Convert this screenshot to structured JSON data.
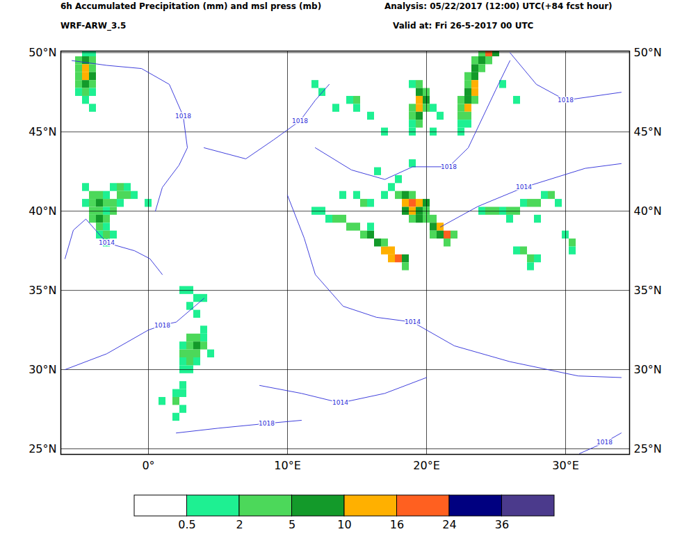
{
  "chart_data": {
    "type": "map",
    "title": "6h Accumulated Precipitation (mm) and msl press (mb)",
    "subtitle": "WRF-ARW_3.5",
    "analysis": "Analysis: 05/22/2017 (12:00) UTC(+84 fcst hour)",
    "valid": "Valid at: Fri 26-5-2017 00 UTC",
    "xlim": [
      -6.3,
      34.6
    ],
    "ylim": [
      24.65,
      50.1
    ],
    "xticks": [
      {
        "value": 0,
        "label": "0°"
      },
      {
        "value": 10,
        "label": "10°E"
      },
      {
        "value": 20,
        "label": "20°E"
      },
      {
        "value": 30,
        "label": "30°E"
      }
    ],
    "yticks": [
      {
        "value": 25,
        "label": "25°N"
      },
      {
        "value": 30,
        "label": "30°N"
      },
      {
        "value": 35,
        "label": "35°N"
      },
      {
        "value": 40,
        "label": "40°N"
      },
      {
        "value": 45,
        "label": "45°N"
      },
      {
        "value": 50,
        "label": "50°N"
      }
    ],
    "grid": true,
    "colorbar": {
      "ticks": [
        0.5,
        2,
        5,
        10,
        16,
        24,
        36
      ],
      "colors": [
        "#ffffff",
        "#1ef092",
        "#4cd85a",
        "#139a2a",
        "#ffb000",
        "#ff6020",
        "#000080",
        "#4b3a8c"
      ]
    },
    "precipitation": [
      [
        -4.5,
        50,
        1
      ],
      [
        -4,
        50,
        1
      ],
      [
        -5,
        49.5,
        3
      ],
      [
        -4.5,
        49.5,
        6
      ],
      [
        -4,
        49.5,
        3
      ],
      [
        -5,
        49,
        3
      ],
      [
        -4.5,
        49,
        12
      ],
      [
        -4,
        49,
        4
      ],
      [
        -5,
        48.5,
        3
      ],
      [
        -4.5,
        48.5,
        14
      ],
      [
        -4,
        48.5,
        6
      ],
      [
        -5,
        48,
        2
      ],
      [
        -4.5,
        48,
        7
      ],
      [
        -4,
        48,
        3
      ],
      [
        -5,
        47.5,
        1
      ],
      [
        -4.5,
        47.5,
        3
      ],
      [
        -4,
        47.5,
        1
      ],
      [
        -4.5,
        47,
        1
      ],
      [
        -4,
        46.5,
        1
      ],
      [
        -4.5,
        41.5,
        1
      ],
      [
        -2.5,
        41.5,
        1
      ],
      [
        -2,
        41.5,
        3
      ],
      [
        -1.5,
        41.5,
        1
      ],
      [
        -4,
        41,
        3
      ],
      [
        -3.5,
        41,
        3
      ],
      [
        -3,
        41,
        1
      ],
      [
        -2,
        41,
        3
      ],
      [
        -1.5,
        41,
        3
      ],
      [
        -1,
        41,
        1
      ],
      [
        -4.5,
        40.5,
        1
      ],
      [
        -4,
        40.5,
        3
      ],
      [
        -3.5,
        40.5,
        6
      ],
      [
        -3,
        40.5,
        3
      ],
      [
        -2.5,
        40.5,
        3
      ],
      [
        -2,
        40.5,
        1
      ],
      [
        0,
        40.5,
        1
      ],
      [
        -4,
        40,
        3
      ],
      [
        -3.5,
        40,
        3
      ],
      [
        -3,
        40,
        1
      ],
      [
        -2.5,
        40,
        3
      ],
      [
        -4,
        39.5,
        3
      ],
      [
        -3.5,
        39.5,
        6
      ],
      [
        -3,
        39.5,
        3
      ],
      [
        -3.5,
        39,
        3
      ],
      [
        -3,
        39,
        1
      ],
      [
        -3.5,
        38.5,
        1
      ],
      [
        -3,
        38.5,
        3
      ],
      [
        -2.5,
        38.5,
        1
      ],
      [
        -3,
        38,
        1
      ],
      [
        2.5,
        35,
        1
      ],
      [
        3,
        35,
        1
      ],
      [
        3.5,
        34.5,
        1
      ],
      [
        4,
        34.5,
        1
      ],
      [
        3,
        34,
        1
      ],
      [
        3.5,
        33.5,
        1
      ],
      [
        4,
        32.5,
        1
      ],
      [
        3,
        32,
        3
      ],
      [
        3.5,
        32,
        3
      ],
      [
        4,
        32,
        1
      ],
      [
        2.5,
        31.5,
        1
      ],
      [
        3,
        31.5,
        3
      ],
      [
        3.5,
        31.5,
        6
      ],
      [
        4,
        31.5,
        3
      ],
      [
        2.5,
        31,
        3
      ],
      [
        3,
        31,
        3
      ],
      [
        3.5,
        31,
        3
      ],
      [
        4.5,
        31,
        1
      ],
      [
        2.5,
        30.5,
        1
      ],
      [
        3,
        30.5,
        3
      ],
      [
        3.5,
        30.5,
        1
      ],
      [
        2.5,
        30,
        1
      ],
      [
        3,
        30,
        1
      ],
      [
        2.5,
        29,
        1
      ],
      [
        2,
        28.5,
        1
      ],
      [
        2.5,
        28.5,
        1
      ],
      [
        2,
        28,
        3
      ],
      [
        2.5,
        27.5,
        1
      ],
      [
        2,
        27,
        1
      ],
      [
        1,
        28,
        1
      ],
      [
        12,
        40,
        1
      ],
      [
        12.5,
        40,
        1
      ],
      [
        13,
        39.5,
        1
      ],
      [
        13.5,
        39.5,
        3
      ],
      [
        14,
        39.5,
        3
      ],
      [
        14.5,
        39,
        3
      ],
      [
        15,
        39,
        3
      ],
      [
        15.5,
        38.5,
        3
      ],
      [
        16,
        38.5,
        6
      ],
      [
        16.5,
        38,
        6
      ],
      [
        17,
        37.5,
        12
      ],
      [
        17.5,
        37.5,
        14
      ],
      [
        18,
        37,
        18
      ],
      [
        17.5,
        37,
        12
      ],
      [
        18.5,
        37,
        6
      ],
      [
        18.5,
        36.5,
        3
      ],
      [
        17,
        38,
        3
      ],
      [
        16,
        39,
        1
      ],
      [
        17.5,
        41.5,
        1
      ],
      [
        18,
        41,
        3
      ],
      [
        18.5,
        41,
        6
      ],
      [
        19,
        41,
        3
      ],
      [
        18.5,
        40.5,
        12
      ],
      [
        19,
        40.5,
        18
      ],
      [
        19.5,
        40.5,
        12
      ],
      [
        20,
        40.5,
        6
      ],
      [
        18.5,
        40,
        6
      ],
      [
        19,
        40,
        12
      ],
      [
        19.5,
        40,
        7
      ],
      [
        20,
        40,
        3
      ],
      [
        19,
        39.5,
        3
      ],
      [
        19.5,
        39.5,
        6
      ],
      [
        20,
        39.5,
        3
      ],
      [
        20.5,
        39.5,
        3
      ],
      [
        20.5,
        39,
        6
      ],
      [
        21,
        39,
        12
      ],
      [
        21.5,
        38.5,
        18
      ],
      [
        21,
        38.5,
        7
      ],
      [
        22,
        38.5,
        3
      ],
      [
        21.5,
        38,
        3
      ],
      [
        20.5,
        38.5,
        3
      ],
      [
        24,
        40,
        1
      ],
      [
        24.5,
        40,
        3
      ],
      [
        25,
        40,
        3
      ],
      [
        25.5,
        40,
        1
      ],
      [
        26,
        40,
        3
      ],
      [
        26.5,
        40,
        3
      ],
      [
        27,
        40.5,
        1
      ],
      [
        27.5,
        40.5,
        3
      ],
      [
        28,
        40.5,
        3
      ],
      [
        28.5,
        41,
        1
      ],
      [
        29,
        41,
        3
      ],
      [
        29.5,
        40.5,
        1
      ],
      [
        26,
        39.5,
        1
      ],
      [
        28,
        39.5,
        1
      ],
      [
        26.5,
        37.5,
        1
      ],
      [
        27,
        37.5,
        3
      ],
      [
        27.5,
        37,
        3
      ],
      [
        28,
        37,
        1
      ],
      [
        27.5,
        36.5,
        1
      ],
      [
        30,
        38.5,
        1
      ],
      [
        30.5,
        38,
        3
      ],
      [
        30.5,
        37.5,
        1
      ],
      [
        19,
        48,
        1
      ],
      [
        19.5,
        48,
        3
      ],
      [
        19.5,
        47.5,
        6
      ],
      [
        20,
        47.5,
        3
      ],
      [
        19.5,
        47,
        12
      ],
      [
        20,
        47,
        6
      ],
      [
        19,
        46.5,
        3
      ],
      [
        19.5,
        46.5,
        14
      ],
      [
        20,
        46.5,
        3
      ],
      [
        19,
        46,
        3
      ],
      [
        19.5,
        46,
        6
      ],
      [
        20.5,
        46.5,
        1
      ],
      [
        19,
        45.5,
        1
      ],
      [
        19.5,
        45.5,
        3
      ],
      [
        19,
        45,
        1
      ],
      [
        20.5,
        45,
        1
      ],
      [
        21,
        46,
        1
      ],
      [
        24,
        50,
        3
      ],
      [
        24.5,
        50,
        20
      ],
      [
        25,
        50,
        6
      ],
      [
        23.5,
        49.5,
        3
      ],
      [
        24,
        49.5,
        7
      ],
      [
        24.5,
        49.5,
        3
      ],
      [
        23.5,
        49,
        6
      ],
      [
        24,
        49,
        3
      ],
      [
        23,
        48.5,
        3
      ],
      [
        23.5,
        48.5,
        6
      ],
      [
        23,
        48,
        3
      ],
      [
        23.5,
        48,
        12
      ],
      [
        23,
        47.5,
        6
      ],
      [
        23.5,
        47.5,
        12
      ],
      [
        22.5,
        47,
        3
      ],
      [
        23,
        47,
        7
      ],
      [
        23.5,
        47,
        3
      ],
      [
        22.5,
        46.5,
        3
      ],
      [
        23,
        46.5,
        12
      ],
      [
        22.5,
        46,
        3
      ],
      [
        23,
        46,
        3
      ],
      [
        22.5,
        45.5,
        1
      ],
      [
        23,
        45.5,
        1
      ],
      [
        22.5,
        45,
        1
      ],
      [
        26.5,
        47,
        1
      ],
      [
        25.5,
        48,
        1
      ],
      [
        12,
        48,
        1
      ],
      [
        12.5,
        47.5,
        1
      ],
      [
        14.5,
        47,
        1
      ],
      [
        15,
        47,
        3
      ],
      [
        15,
        46.5,
        1
      ],
      [
        13.5,
        46.5,
        1
      ],
      [
        16,
        46,
        1
      ],
      [
        17,
        45,
        1
      ],
      [
        16.5,
        42.5,
        1
      ],
      [
        18,
        42,
        1
      ],
      [
        17,
        41,
        1
      ],
      [
        19,
        43,
        1
      ],
      [
        14,
        41,
        1
      ],
      [
        15,
        41,
        1
      ],
      [
        15.5,
        40.5,
        3
      ],
      [
        16,
        40.5,
        1
      ]
    ],
    "isobars": [
      {
        "value": 1018,
        "points": [
          [
            -5.5,
            49.5
          ],
          [
            -3,
            49.2
          ],
          [
            -0.5,
            49
          ],
          [
            1.5,
            48
          ],
          [
            2.5,
            46
          ],
          [
            2.8,
            44
          ],
          [
            2.2,
            42.9
          ],
          [
            1,
            41.5
          ],
          [
            0.5,
            40
          ]
        ]
      },
      {
        "value": 1014,
        "points": [
          [
            -6,
            37
          ],
          [
            -5.4,
            38.8
          ],
          [
            -4.5,
            39.5
          ],
          [
            -3,
            38
          ],
          [
            -1,
            37.5
          ],
          [
            0.1,
            37
          ],
          [
            1,
            36
          ]
        ]
      },
      {
        "value": 1018,
        "points": [
          [
            -6,
            30
          ],
          [
            -3,
            31
          ],
          [
            0,
            32.5
          ],
          [
            1,
            32.8
          ],
          [
            2,
            33
          ],
          [
            4,
            34.5
          ]
        ]
      },
      {
        "value": 1018,
        "points": [
          [
            2,
            26
          ],
          [
            5,
            26.3
          ],
          [
            8.5,
            26.6
          ],
          [
            11,
            26.8
          ]
        ]
      },
      {
        "value": 1014,
        "points": [
          [
            8,
            29
          ],
          [
            11,
            28.5
          ],
          [
            13.8,
            27.9
          ],
          [
            17,
            28.5
          ],
          [
            20,
            29.5
          ]
        ]
      },
      {
        "value": 1014,
        "points": [
          [
            10,
            41
          ],
          [
            11.2,
            38.3
          ],
          [
            12,
            36
          ],
          [
            14,
            34
          ],
          [
            16.4,
            33.3
          ],
          [
            19,
            33
          ],
          [
            22,
            31.5
          ],
          [
            26,
            30.5
          ],
          [
            30.9,
            29.6
          ],
          [
            34,
            29.5
          ]
        ]
      },
      {
        "value": 1018,
        "points": [
          [
            4,
            44
          ],
          [
            7,
            43.3
          ],
          [
            9,
            44.5
          ],
          [
            10.9,
            45.7
          ],
          [
            12,
            47
          ],
          [
            13,
            48
          ]
        ]
      },
      {
        "value": 1018,
        "points": [
          [
            12,
            44
          ],
          [
            14.6,
            42.6
          ],
          [
            17,
            42
          ],
          [
            19,
            42.8
          ],
          [
            21.6,
            42.8
          ],
          [
            23,
            44
          ],
          [
            25,
            47.7
          ],
          [
            26,
            49.5
          ]
        ]
      },
      {
        "value": 1014,
        "points": [
          [
            21,
            39
          ],
          [
            23.7,
            40.3
          ],
          [
            27,
            41.5
          ],
          [
            31.4,
            42.7
          ],
          [
            34,
            43
          ]
        ]
      },
      {
        "value": 1018,
        "points": [
          [
            26,
            50
          ],
          [
            27.9,
            48
          ],
          [
            30,
            47
          ],
          [
            34,
            47.5
          ]
        ]
      },
      {
        "value": 1018,
        "points": [
          [
            31,
            24.7
          ],
          [
            32.8,
            25.4
          ],
          [
            34,
            26
          ]
        ]
      }
    ]
  }
}
